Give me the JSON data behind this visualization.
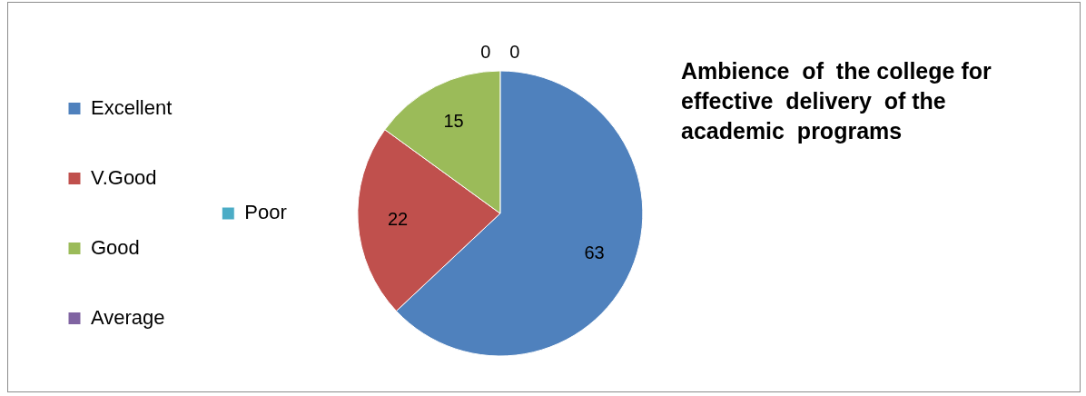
{
  "chart_data": {
    "type": "pie",
    "title": "Ambience  of  the college for effective  delivery  of the academic  programs",
    "categories": [
      "Excellent",
      "V.Good",
      "Good",
      "Average",
      "Poor"
    ],
    "values": [
      63,
      22,
      15,
      0,
      0
    ],
    "colors": [
      "#4f81bd",
      "#c0504d",
      "#9bbb59",
      "#8064a2",
      "#4bacc6"
    ],
    "value_labels": [
      "63",
      "22",
      "15",
      "0",
      "0"
    ],
    "legend": "left"
  }
}
